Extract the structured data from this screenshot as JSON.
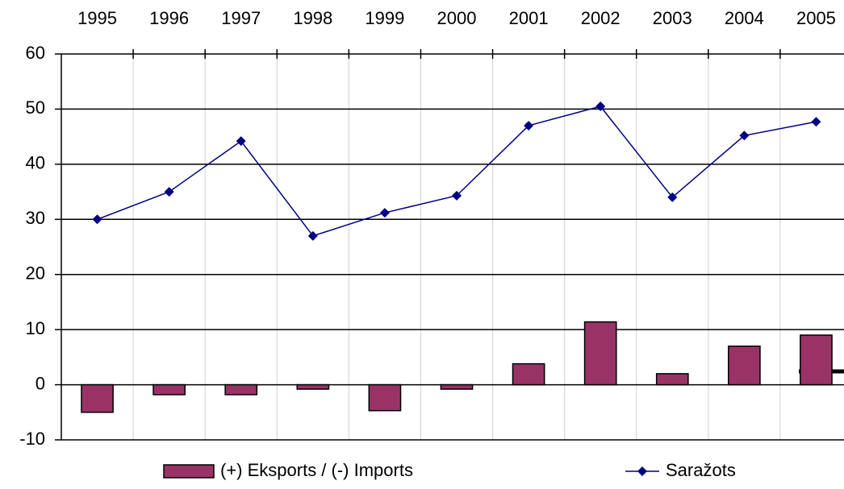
{
  "chart_data": {
    "type": "bar",
    "categories": [
      "1995",
      "1996",
      "1997",
      "1998",
      "1999",
      "2000",
      "2001",
      "2002",
      "2003",
      "2004",
      "2005"
    ],
    "series": [
      {
        "name": "(+) Eksports / (-) Imports",
        "type": "bar",
        "color": "#993366",
        "values": [
          -5,
          -1.8,
          -1.8,
          -0.8,
          -4.7,
          -0.8,
          3.8,
          11.4,
          2,
          7,
          9
        ]
      },
      {
        "name": "Saražots",
        "type": "line",
        "color": "#000080",
        "values": [
          30,
          35,
          44.2,
          27,
          31.2,
          34.3,
          47,
          50.5,
          34,
          45.2,
          47.7
        ]
      }
    ],
    "ylim": [
      -10,
      60
    ],
    "yticks": [
      -10,
      0,
      10,
      20,
      30,
      40,
      50,
      60
    ],
    "grid": true,
    "legend": "bottom"
  }
}
